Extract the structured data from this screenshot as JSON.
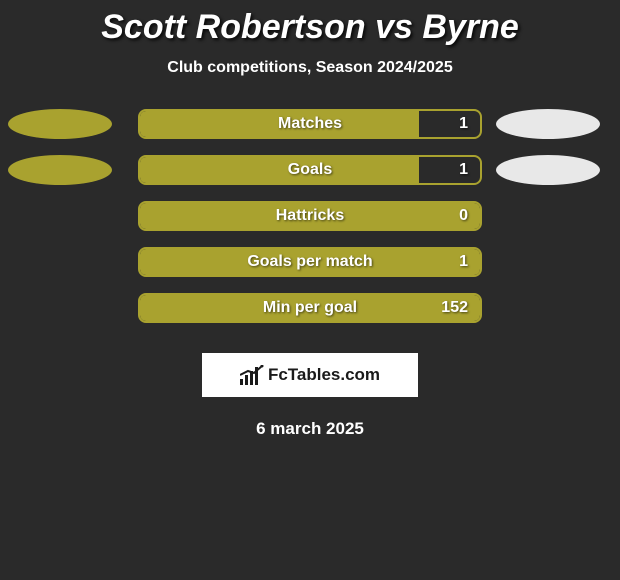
{
  "background_color": "#2a2a2a",
  "title": "Scott Robertson vs Byrne",
  "subtitle": "Club competitions, Season 2024/2025",
  "date": "6 march 2025",
  "brand": "FcTables.com",
  "left_ellipse_color": "#a9a22f",
  "right_ellipse_color": "#e8e8e8",
  "bar_border_color": "#a9a22f",
  "bar_fill_color": "#a9a22f",
  "stats": [
    {
      "label": "Matches",
      "value": "1",
      "fill_pct": 82,
      "show_ellipses": true
    },
    {
      "label": "Goals",
      "value": "1",
      "fill_pct": 82,
      "show_ellipses": true
    },
    {
      "label": "Hattricks",
      "value": "0",
      "fill_pct": 100,
      "show_ellipses": false
    },
    {
      "label": "Goals per match",
      "value": "1",
      "fill_pct": 100,
      "show_ellipses": false
    },
    {
      "label": "Min per goal",
      "value": "152",
      "fill_pct": 100,
      "show_ellipses": false
    }
  ]
}
